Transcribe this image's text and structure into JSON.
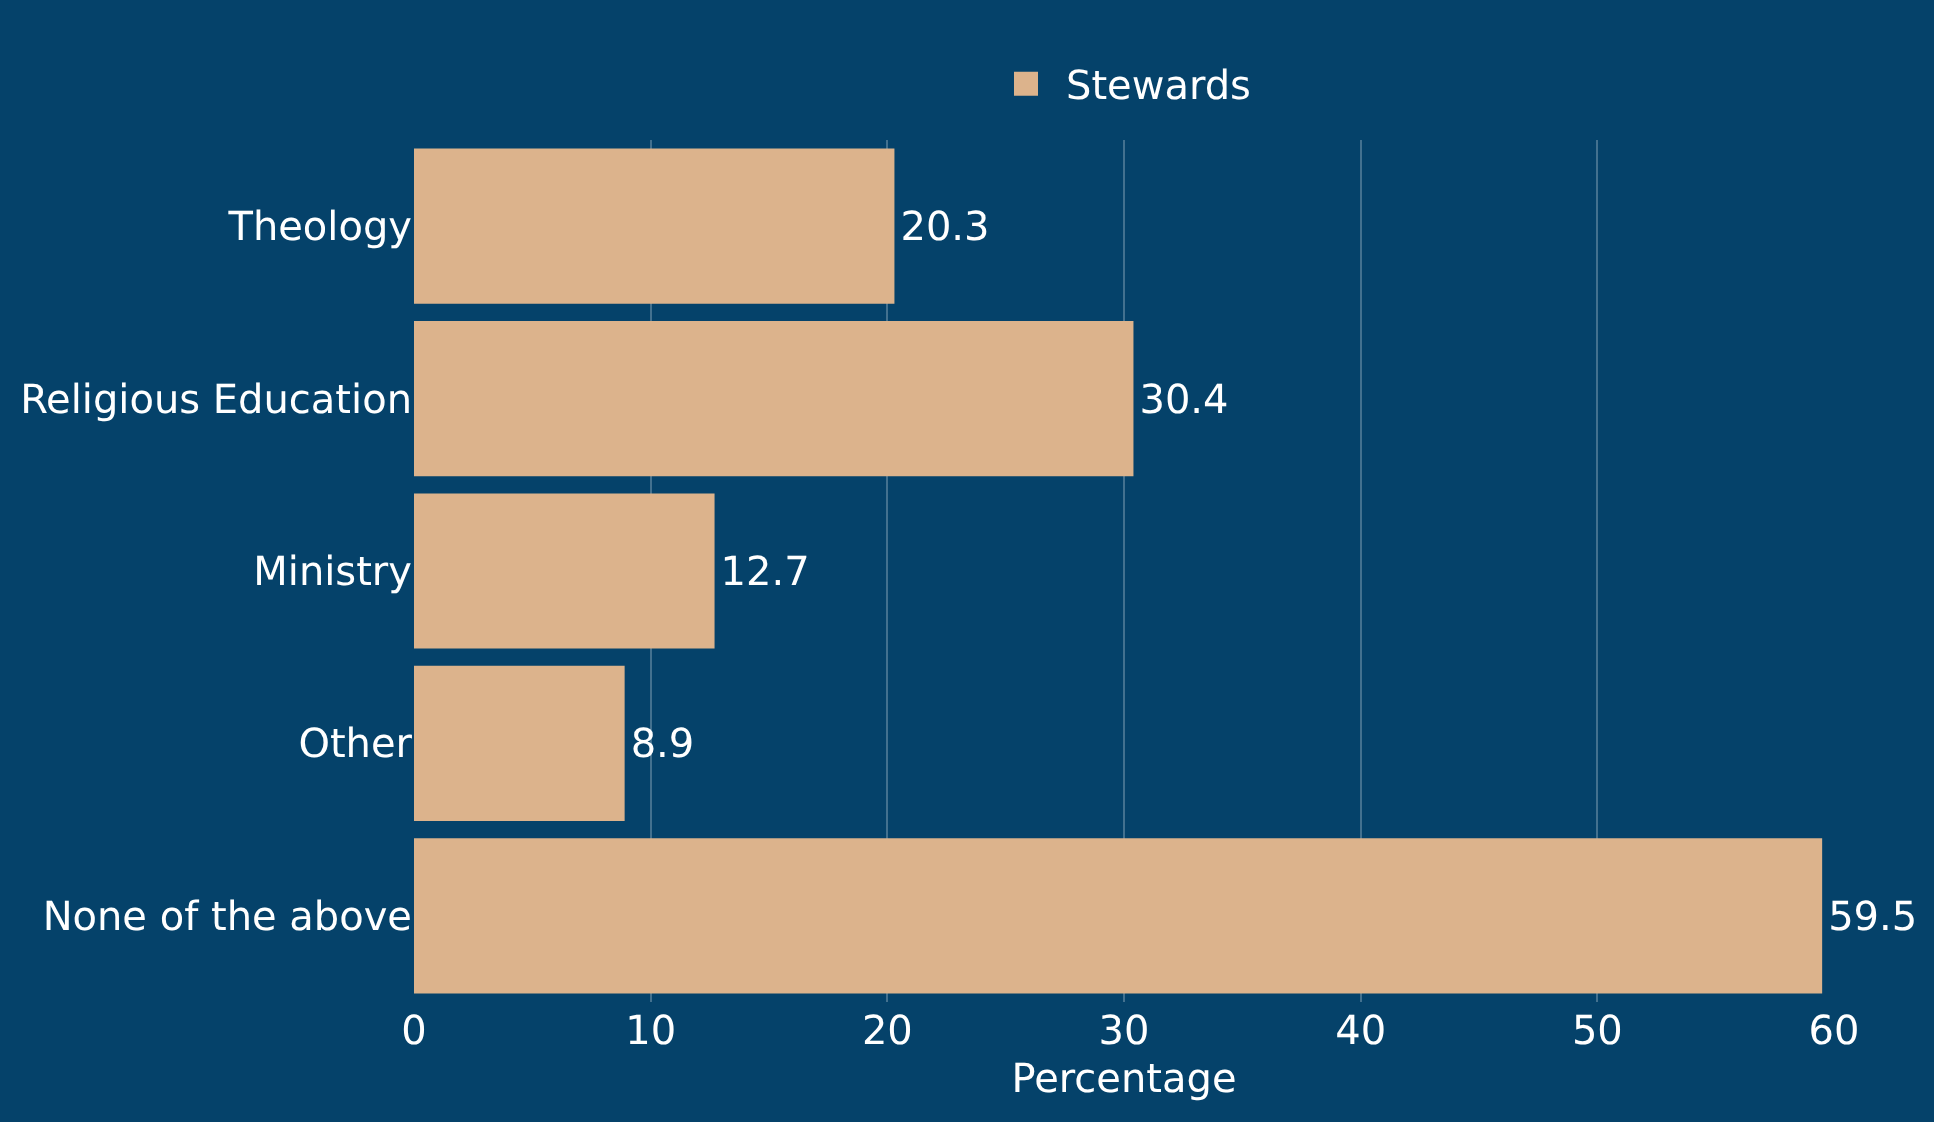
{
  "chart_data": {
    "type": "bar",
    "orientation": "horizontal",
    "xlabel": "Percentage",
    "categories": [
      "Theology",
      "Religious Education",
      "Ministry",
      "Other",
      "None of the above"
    ],
    "series": [
      {
        "name": "Stewards",
        "color": "#dcb38c",
        "values": [
          20.3,
          30.4,
          12.7,
          8.9,
          59.5
        ]
      }
    ],
    "xlim": [
      0,
      60
    ],
    "xticks": [
      0,
      10,
      20,
      30,
      40,
      50,
      60
    ],
    "grid": "x",
    "legend": "top",
    "data_labels": true
  }
}
